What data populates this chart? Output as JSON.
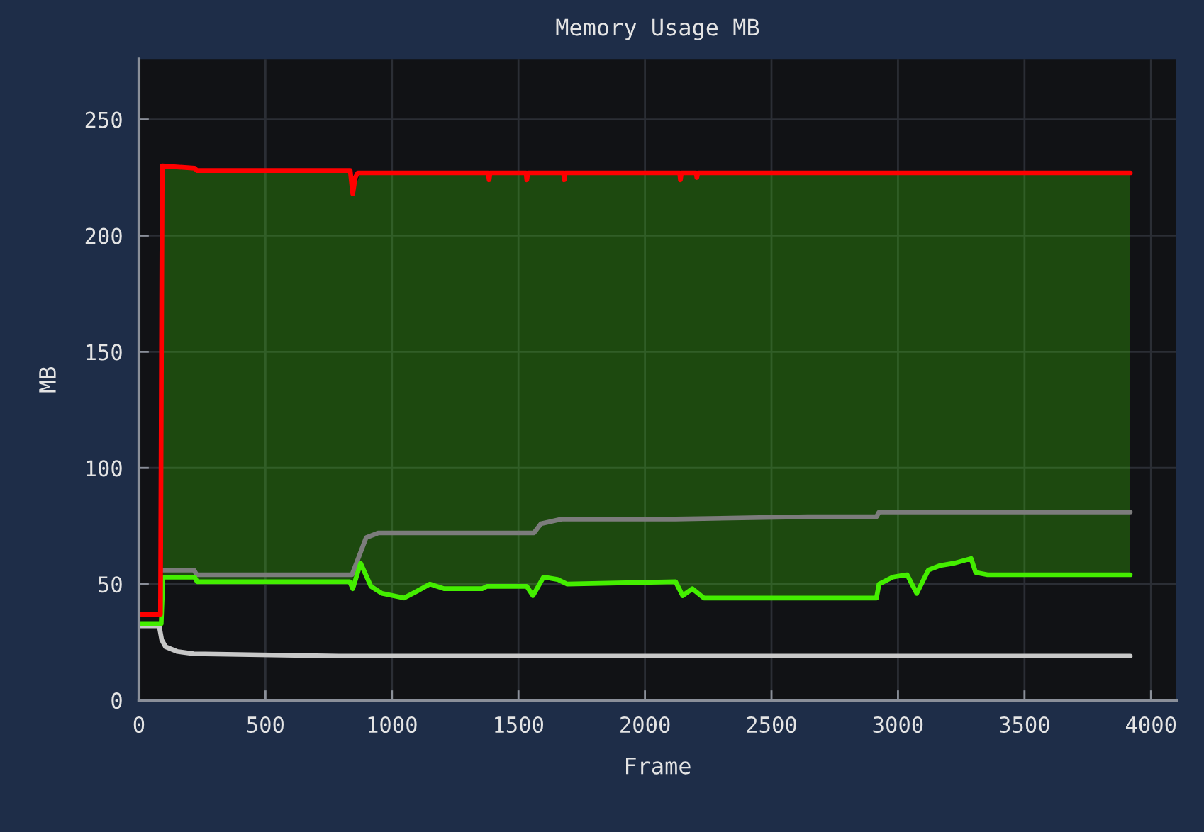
{
  "chart_data": {
    "type": "line",
    "title": "Memory Usage MB",
    "xlabel": "Frame",
    "ylabel": "MB",
    "xlim": [
      0,
      4100
    ],
    "ylim": [
      0,
      276
    ],
    "xticks": [
      0,
      500,
      1000,
      1500,
      2000,
      2500,
      3000,
      3500,
      4000
    ],
    "yticks": [
      0,
      50,
      100,
      150,
      200,
      250
    ],
    "grid": true,
    "series": [
      {
        "color": "#c8c8c8",
        "x": [
          0,
          80,
          90,
          105,
          150,
          217,
          790,
          3918
        ],
        "values": [
          32,
          32,
          26,
          23,
          21,
          20,
          19,
          19
        ]
      },
      {
        "color": "#7c7c7c",
        "x": [
          95,
          218,
          228,
          842,
          870,
          898,
          945,
          1561,
          1589,
          1673,
          2121,
          2644,
          2915,
          2925,
          3918
        ],
        "values": [
          56,
          56,
          54,
          54,
          62,
          70,
          72,
          72,
          76,
          78,
          78,
          79,
          79,
          81,
          81
        ]
      },
      {
        "color": "#44ee00",
        "x": [
          0,
          88,
          95,
          220,
          230,
          833,
          845,
          876,
          917,
          960,
          1048,
          1100,
          1150,
          1206,
          1356,
          1375,
          1533,
          1557,
          1599,
          1654,
          1693,
          2121,
          2149,
          2187,
          2233,
          2915,
          2925,
          2980,
          3036,
          3074,
          3120,
          3167,
          3223,
          3289,
          3307,
          3354,
          3918
        ],
        "values": [
          33,
          33,
          53,
          53,
          51,
          51,
          48,
          59,
          49,
          46,
          44,
          47,
          50,
          48,
          48,
          49,
          49,
          45,
          53,
          52,
          50,
          51,
          45,
          48,
          44,
          44,
          50,
          53,
          54,
          46,
          56,
          58,
          59,
          61,
          55,
          54,
          54
        ],
        "lower": [
          null,
          null,
          53,
          53,
          51,
          51,
          48,
          59,
          49,
          46,
          44,
          47,
          50,
          48,
          48,
          49,
          49,
          45,
          53,
          52,
          50,
          51,
          45,
          48,
          44,
          44,
          50,
          53,
          54,
          46,
          56,
          58,
          59,
          61,
          55,
          54,
          54
        ],
        "upper": [
          null,
          null,
          230,
          229,
          228,
          228,
          218,
          227,
          227,
          227,
          227,
          227,
          227,
          227,
          227,
          227,
          227,
          227,
          227,
          227,
          227,
          227,
          227,
          227,
          227,
          227,
          227,
          227,
          227,
          227,
          227,
          227,
          227,
          227,
          227,
          227,
          227
        ]
      },
      {
        "color": "#ff0000",
        "x": [
          0,
          85,
          92,
          220,
          230,
          835,
          845,
          855,
          865,
          1380,
          1384,
          1388,
          1530,
          1533,
          1537,
          1678,
          1681,
          1685,
          2137,
          2140,
          2144,
          2202,
          2205,
          2209,
          3918
        ],
        "values": [
          37,
          37,
          230,
          229,
          228,
          228,
          218,
          225,
          227,
          227,
          224,
          227,
          227,
          224,
          227,
          227,
          224,
          227,
          227,
          224,
          227,
          227,
          225,
          227,
          227
        ]
      }
    ]
  }
}
